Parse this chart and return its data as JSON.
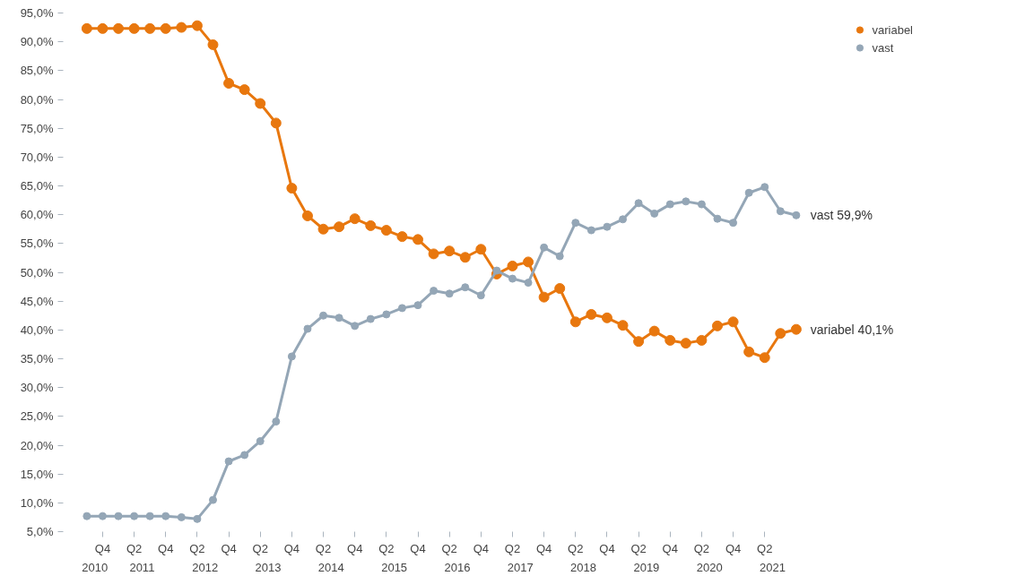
{
  "chart_data": {
    "type": "line",
    "categories": [
      null,
      "Q4",
      null,
      "Q2",
      null,
      "Q4",
      null,
      "Q2",
      null,
      "Q4",
      null,
      "Q2",
      null,
      "Q4",
      null,
      "Q2",
      null,
      "Q4",
      null,
      "Q2",
      null,
      "Q4",
      null,
      "Q2",
      null,
      "Q4",
      null,
      "Q2",
      null,
      "Q4",
      null,
      "Q2",
      null,
      "Q4",
      null,
      "Q2",
      null,
      "Q4",
      null,
      "Q2",
      null,
      "Q4",
      null,
      "Q2",
      null,
      null
    ],
    "series": [
      {
        "name": "variabel",
        "color": "#e8770e",
        "values": [
          92.3,
          92.3,
          92.3,
          92.3,
          92.3,
          92.3,
          92.5,
          92.8,
          89.5,
          82.8,
          81.7,
          79.3,
          75.9,
          64.6,
          59.8,
          57.5,
          57.9,
          59.3,
          58.1,
          57.3,
          56.2,
          55.7,
          53.2,
          53.7,
          52.6,
          54.0,
          49.7,
          51.1,
          51.8,
          45.7,
          47.2,
          41.4,
          42.7,
          42.1,
          40.8,
          38.0,
          39.8,
          38.2,
          37.7,
          38.2,
          40.7,
          41.4,
          36.2,
          35.2,
          39.4,
          40.1
        ]
      },
      {
        "name": "vast",
        "color": "#94a6b6",
        "values": [
          7.7,
          7.7,
          7.7,
          7.7,
          7.7,
          7.7,
          7.5,
          7.2,
          10.5,
          17.2,
          18.3,
          20.7,
          24.1,
          35.4,
          40.2,
          42.5,
          42.1,
          40.7,
          41.9,
          42.7,
          43.8,
          44.3,
          46.8,
          46.3,
          47.4,
          46.0,
          50.3,
          48.9,
          48.2,
          54.3,
          52.8,
          58.6,
          57.3,
          57.9,
          59.2,
          62.0,
          60.2,
          61.8,
          62.3,
          61.8,
          59.3,
          58.6,
          63.8,
          64.8,
          60.6,
          59.9
        ]
      }
    ],
    "ylim": [
      5,
      95
    ],
    "yticks": [
      {
        "value": 5,
        "label": "5,0%"
      },
      {
        "value": 10,
        "label": "10,0%"
      },
      {
        "value": 15,
        "label": "15,0%"
      },
      {
        "value": 20,
        "label": "20,0%"
      },
      {
        "value": 25,
        "label": "25,0%"
      },
      {
        "value": 30,
        "label": "30,0%"
      },
      {
        "value": 35,
        "label": "35,0%"
      },
      {
        "value": 40,
        "label": "40,0%"
      },
      {
        "value": 45,
        "label": "45,0%"
      },
      {
        "value": 50,
        "label": "50,0%"
      },
      {
        "value": 55,
        "label": "55,0%"
      },
      {
        "value": 60,
        "label": "60,0%"
      },
      {
        "value": 65,
        "label": "65,0%"
      },
      {
        "value": 70,
        "label": "70,0%"
      },
      {
        "value": 75,
        "label": "75,0%"
      },
      {
        "value": 80,
        "label": "80,0%"
      },
      {
        "value": 85,
        "label": "85,0%"
      },
      {
        "value": 90,
        "label": "90,0%"
      },
      {
        "value": 95,
        "label": "95,0%"
      }
    ],
    "annotations": [
      "2010",
      "2011",
      "2012",
      "2013",
      "2014",
      "2015",
      "2016",
      "2017",
      "2018",
      "2019",
      "2020",
      "2021",
      "variabel 40,1%",
      "vast  59,9%"
    ],
    "marker": "circle",
    "line_style": "solid",
    "legend": "top right",
    "grid": false
  }
}
